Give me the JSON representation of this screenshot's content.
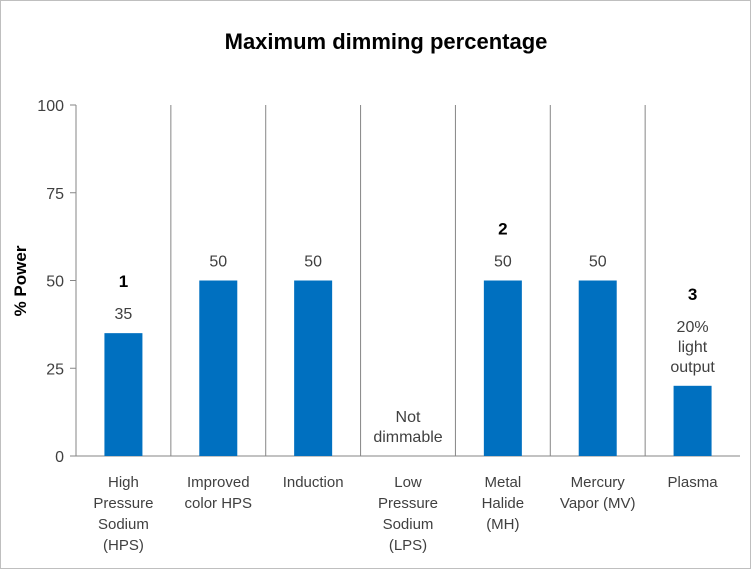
{
  "chart_data": {
    "type": "bar",
    "title": "Maximum dimming percentage",
    "ylabel": "% Power",
    "xlabel": "",
    "ylim": [
      0,
      100
    ],
    "yticks": [
      0,
      25,
      50,
      75,
      100
    ],
    "grid": false,
    "bar_color": "#0070c0",
    "categories": [
      [
        "High",
        "Pressure",
        "Sodium",
        "(HPS)"
      ],
      [
        "Improved",
        "color HPS"
      ],
      [
        "Induction"
      ],
      [
        "Low",
        "Pressure",
        "Sodium",
        "(LPS)"
      ],
      [
        "Metal",
        "Halide",
        "(MH)"
      ],
      [
        "Mercury",
        "Vapor (MV)"
      ],
      [
        "Plasma"
      ]
    ],
    "values": [
      35,
      50,
      50,
      null,
      50,
      50,
      20
    ],
    "data_labels": [
      [
        "35"
      ],
      [
        "50"
      ],
      [
        "50"
      ],
      [
        "Not",
        "dimmable"
      ],
      [
        "50"
      ],
      [
        "50"
      ],
      [
        "20%",
        "light",
        "output"
      ]
    ],
    "markers": [
      {
        "category_index": 0,
        "text": "1"
      },
      {
        "category_index": 4,
        "text": "2"
      },
      {
        "category_index": 6,
        "text": "3"
      }
    ]
  }
}
